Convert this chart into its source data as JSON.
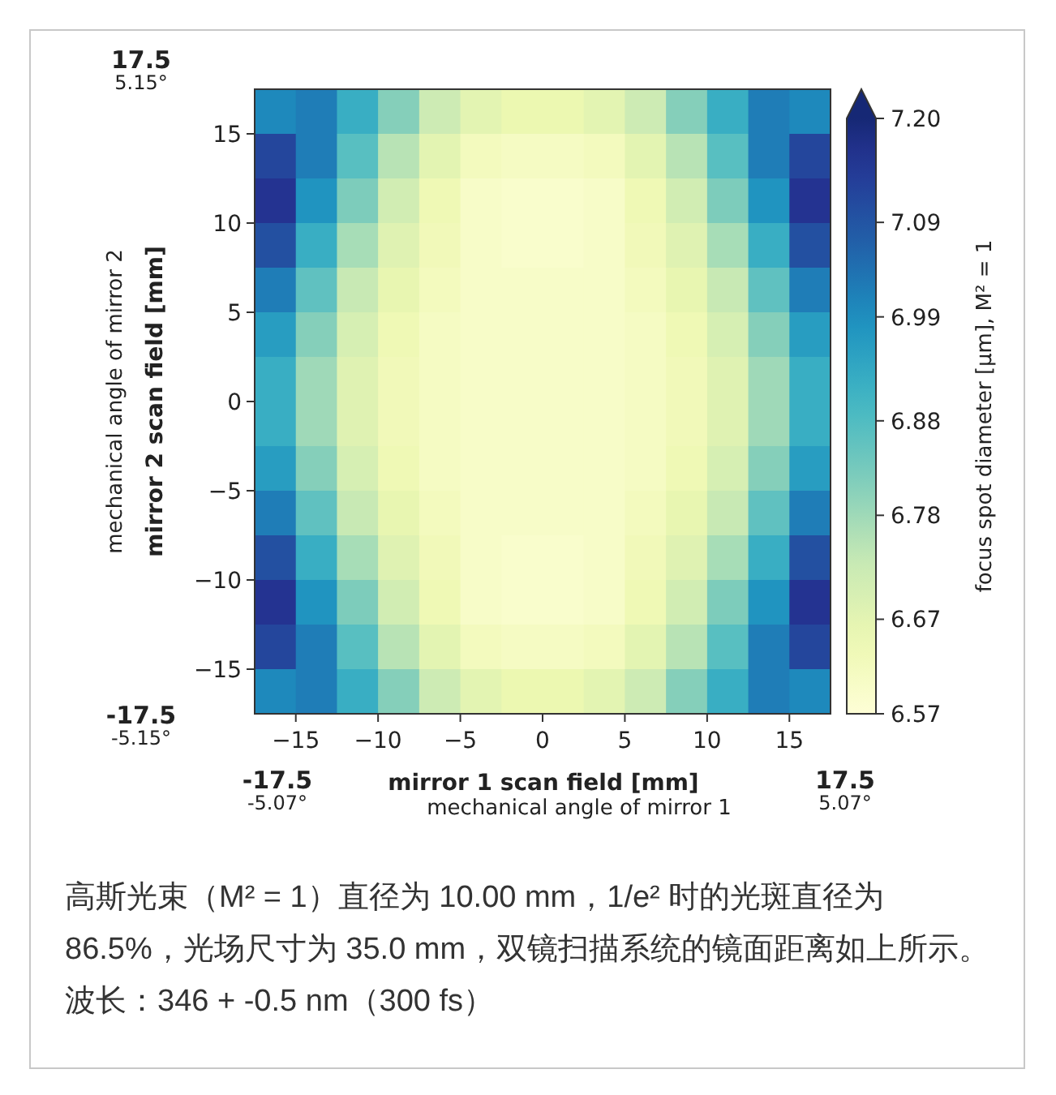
{
  "chart_data": {
    "type": "heatmap",
    "xlabel": "mirror 1 scan field [mm]",
    "ylabel": "mirror 2 scan field [mm]",
    "clabel": "focus spot diameter [μm], M² = 1",
    "annotations": [
      "mechanical angle of mirror 1",
      "mechanical angle of mirror 2",
      "高斯光束（M² = 1）直径为 10.00 mm，1/e² 时的光斑直径为 86.5%，光场尺寸为 35.0 mm，双镜扫描系统的镜面距离如上所示。波长：346 + -0.5 nm（300 fs）",
      "17.5\n5.15°",
      "-17.5\n-5.15°",
      "-17.5\n-5.07°",
      "17.5\n5.07°"
    ],
    "xlim": [
      -17.5,
      17.5
    ],
    "ylim": [
      -17.5,
      17.5
    ],
    "xticks": [
      {
        "value": -15,
        "label": "−15"
      },
      {
        "value": -10,
        "label": "−10"
      },
      {
        "value": -5,
        "label": "−5"
      },
      0,
      5,
      10,
      15
    ],
    "yticks": [
      {
        "value": -15,
        "label": "−15"
      },
      {
        "value": -10,
        "label": "−10"
      },
      {
        "value": -5,
        "label": "−5"
      },
      0,
      5,
      10,
      15
    ],
    "clim": [
      6.57,
      7.2
    ],
    "cticks": [
      6.57,
      6.67,
      6.78,
      6.88,
      6.99,
      7.09,
      {
        "value": 7.2,
        "label": "7.20"
      }
    ],
    "cells": [
      [
        7.0,
        7.02,
        6.92,
        6.81,
        6.72,
        6.67,
        6.65,
        6.65,
        6.67,
        6.72,
        6.81,
        6.92,
        7.02,
        7.0
      ],
      [
        7.12,
        7.02,
        6.87,
        6.75,
        6.67,
        6.62,
        6.61,
        6.61,
        6.62,
        6.67,
        6.75,
        6.87,
        7.02,
        7.12
      ],
      [
        7.16,
        6.98,
        6.82,
        6.71,
        6.64,
        6.6,
        6.59,
        6.59,
        6.6,
        6.64,
        6.71,
        6.82,
        6.98,
        7.16
      ],
      [
        7.1,
        6.92,
        6.77,
        6.68,
        6.63,
        6.6,
        6.59,
        6.59,
        6.6,
        6.63,
        6.68,
        6.77,
        6.92,
        7.1
      ],
      [
        7.02,
        6.86,
        6.73,
        6.66,
        6.62,
        6.6,
        6.6,
        6.6,
        6.6,
        6.62,
        6.66,
        6.73,
        6.86,
        7.02
      ],
      [
        6.96,
        6.81,
        6.7,
        6.64,
        6.61,
        6.6,
        6.6,
        6.6,
        6.6,
        6.61,
        6.64,
        6.7,
        6.81,
        6.96
      ],
      [
        6.92,
        6.78,
        6.68,
        6.63,
        6.61,
        6.6,
        6.6,
        6.6,
        6.6,
        6.61,
        6.63,
        6.68,
        6.78,
        6.92
      ],
      [
        6.92,
        6.78,
        6.68,
        6.63,
        6.61,
        6.6,
        6.6,
        6.6,
        6.6,
        6.61,
        6.63,
        6.68,
        6.78,
        6.92
      ],
      [
        6.96,
        6.81,
        6.7,
        6.64,
        6.61,
        6.6,
        6.6,
        6.6,
        6.6,
        6.61,
        6.64,
        6.7,
        6.81,
        6.96
      ],
      [
        7.02,
        6.86,
        6.73,
        6.66,
        6.62,
        6.6,
        6.6,
        6.6,
        6.6,
        6.62,
        6.66,
        6.73,
        6.86,
        7.02
      ],
      [
        7.1,
        6.92,
        6.77,
        6.68,
        6.63,
        6.6,
        6.59,
        6.59,
        6.6,
        6.63,
        6.68,
        6.77,
        6.92,
        7.1
      ],
      [
        7.16,
        6.98,
        6.82,
        6.71,
        6.64,
        6.6,
        6.59,
        6.59,
        6.6,
        6.64,
        6.71,
        6.82,
        6.98,
        7.16
      ],
      [
        7.12,
        7.02,
        6.87,
        6.75,
        6.67,
        6.62,
        6.61,
        6.61,
        6.62,
        6.67,
        6.75,
        6.87,
        7.02,
        7.12
      ],
      [
        7.0,
        7.02,
        6.92,
        6.81,
        6.72,
        6.67,
        6.65,
        6.65,
        6.67,
        6.72,
        6.81,
        6.92,
        7.02,
        7.0
      ]
    ]
  }
}
